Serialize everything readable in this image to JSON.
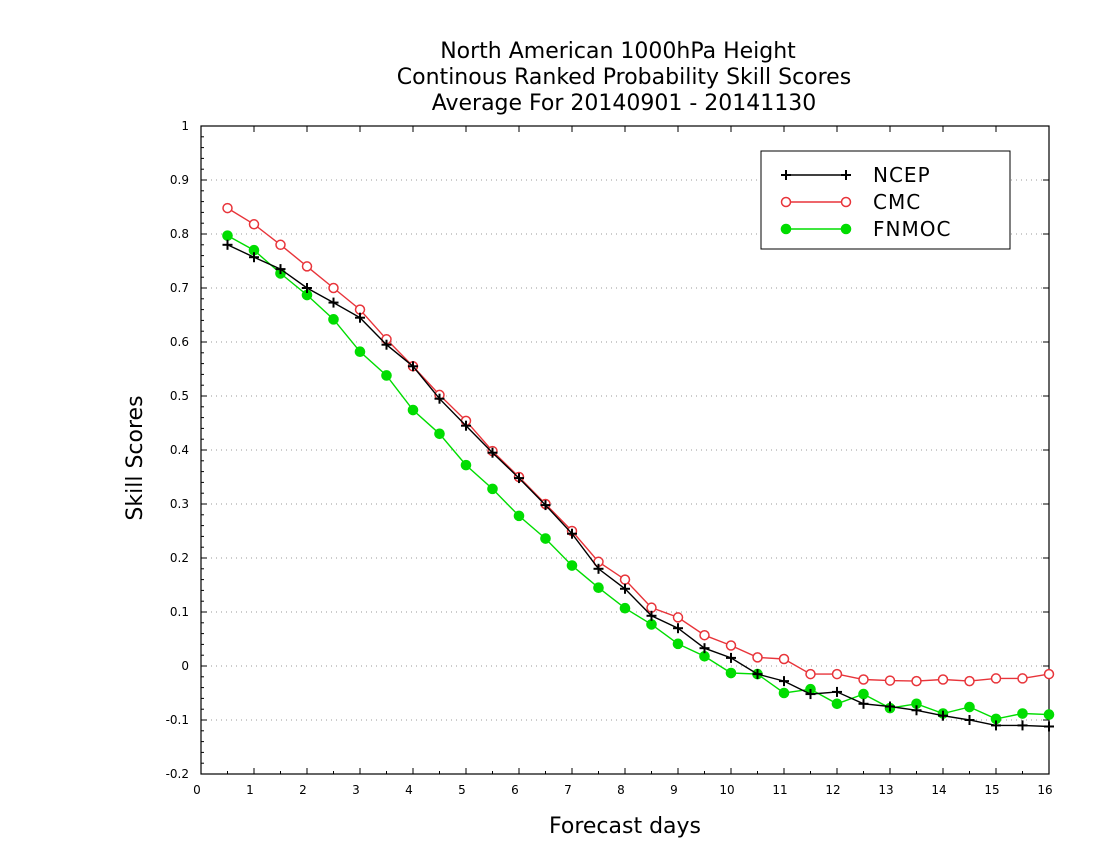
{
  "chart_data": {
    "type": "line",
    "title": [
      "North American 1000hPa Height",
      "Continous Ranked Probability Skill Scores",
      "Average For 20140901 - 20141130"
    ],
    "xlabel": "Forecast days",
    "ylabel": "Skill Scores",
    "xlim": [
      0,
      16
    ],
    "ylim": [
      -0.2,
      1
    ],
    "x_ticks": [
      "0",
      "1",
      "2",
      "3",
      "4",
      "5",
      "6",
      "7",
      "8",
      "9",
      "10",
      "11",
      "12",
      "13",
      "14",
      "15",
      "16"
    ],
    "y_ticks": [
      "1",
      "0.9",
      "0.8",
      "0.7",
      "0.6",
      "0.5",
      "0.4",
      "0.3",
      "0.2",
      "0.1",
      "0",
      "-0.1",
      "-0.2"
    ],
    "grid": "horizontal dotted",
    "legend_position": "top-right",
    "x": [
      0.5,
      1,
      1.5,
      2,
      2.5,
      3,
      3.5,
      4,
      4.5,
      5,
      5.5,
      6,
      6.5,
      7,
      7.5,
      8,
      8.5,
      9,
      9.5,
      10,
      10.5,
      11,
      11.5,
      12,
      12.5,
      13,
      13.5,
      14,
      14.5,
      15,
      15.5,
      16
    ],
    "series": [
      {
        "name": "NCEP",
        "color": "#000000",
        "marker": "plus",
        "values": [
          0.78,
          0.757,
          0.735,
          0.7,
          0.673,
          0.645,
          0.595,
          0.555,
          0.495,
          0.445,
          0.395,
          0.348,
          0.298,
          0.245,
          0.18,
          0.143,
          0.093,
          0.07,
          0.033,
          0.015,
          -0.015,
          -0.028,
          -0.052,
          -0.048,
          -0.07,
          -0.075,
          -0.082,
          -0.092,
          -0.1,
          -0.11,
          -0.11,
          -0.112
        ]
      },
      {
        "name": "CMC",
        "color": "#e8343a",
        "marker": "open-circle",
        "values": [
          0.848,
          0.818,
          0.78,
          0.74,
          0.7,
          0.66,
          0.605,
          0.555,
          0.502,
          0.454,
          0.398,
          0.35,
          0.3,
          0.25,
          0.193,
          0.16,
          0.108,
          0.09,
          0.057,
          0.038,
          0.016,
          0.013,
          -0.015,
          -0.015,
          -0.025,
          -0.027,
          -0.028,
          -0.025,
          -0.028,
          -0.023,
          -0.023,
          -0.015
        ]
      },
      {
        "name": "FNMOC",
        "color": "#00dd00",
        "marker": "filled-circle",
        "values": [
          0.797,
          0.77,
          0.727,
          0.687,
          0.642,
          0.582,
          0.538,
          0.474,
          0.43,
          0.372,
          0.328,
          0.278,
          0.236,
          0.186,
          0.145,
          0.107,
          0.077,
          0.041,
          0.018,
          -0.013,
          -0.015,
          -0.05,
          -0.043,
          -0.07,
          -0.052,
          -0.078,
          -0.07,
          -0.088,
          -0.076,
          -0.098,
          -0.088,
          -0.09
        ]
      }
    ]
  }
}
